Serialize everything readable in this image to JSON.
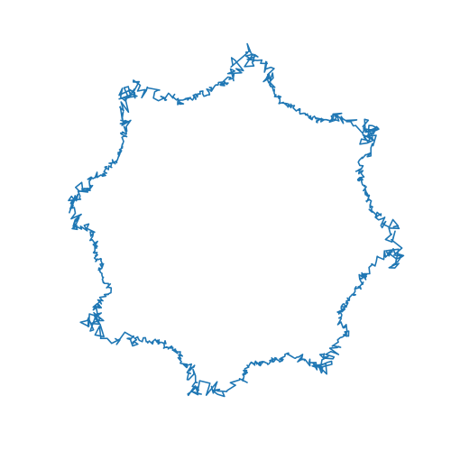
{
  "figure": {
    "background": "#ffffff",
    "line_color": "#1f77b4",
    "shape": "closed jittery loop with eight clustered lobes",
    "lobe_count": 8
  }
}
